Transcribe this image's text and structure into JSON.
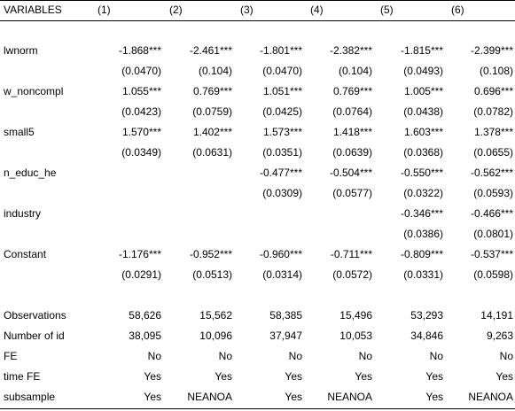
{
  "table": {
    "header": [
      "VARIABLES",
      "(1)",
      "(2)",
      "(3)",
      "(4)",
      "(5)",
      "(6)"
    ],
    "rows": [
      {
        "label": "",
        "cells": [
          "",
          "",
          "",
          "",
          "",
          ""
        ]
      },
      {
        "label": "lwnorm",
        "cells": [
          "-1.868***",
          "-2.461***",
          "-1.801***",
          "-2.382***",
          "-1.815***",
          "-2.399***"
        ]
      },
      {
        "label": "",
        "cells": [
          "(0.0470)",
          "(0.104)",
          "(0.0470)",
          "(0.104)",
          "(0.0493)",
          "(0.108)"
        ]
      },
      {
        "label": "w_noncompl",
        "cells": [
          "1.055***",
          "0.769***",
          "1.051***",
          "0.769***",
          "1.005***",
          "0.696***"
        ]
      },
      {
        "label": "",
        "cells": [
          "(0.0423)",
          "(0.0759)",
          "(0.0425)",
          "(0.0764)",
          "(0.0438)",
          "(0.0782)"
        ]
      },
      {
        "label": "small5",
        "cells": [
          "1.570***",
          "1.402***",
          "1.573***",
          "1.418***",
          "1.603***",
          "1.378***"
        ]
      },
      {
        "label": "",
        "cells": [
          "(0.0349)",
          "(0.0631)",
          "(0.0351)",
          "(0.0639)",
          "(0.0368)",
          "(0.0655)"
        ]
      },
      {
        "label": "n_educ_he",
        "cells": [
          "",
          "",
          "-0.477***",
          "-0.504***",
          "-0.550***",
          "-0.562***"
        ]
      },
      {
        "label": "",
        "cells": [
          "",
          "",
          "(0.0309)",
          "(0.0577)",
          "(0.0322)",
          "(0.0593)"
        ]
      },
      {
        "label": "industry",
        "cells": [
          "",
          "",
          "",
          "",
          "-0.346***",
          "-0.466***"
        ]
      },
      {
        "label": "",
        "cells": [
          "",
          "",
          "",
          "",
          "(0.0386)",
          "(0.0801)"
        ]
      },
      {
        "label": "Constant",
        "cells": [
          "-1.176***",
          "-0.952***",
          "-0.960***",
          "-0.711***",
          "-0.809***",
          "-0.537***"
        ]
      },
      {
        "label": "",
        "cells": [
          "(0.0291)",
          "(0.0513)",
          "(0.0314)",
          "(0.0572)",
          "(0.0331)",
          "(0.0598)"
        ]
      },
      {
        "label": "",
        "cells": [
          "",
          "",
          "",
          "",
          "",
          ""
        ]
      },
      {
        "label": "Observations",
        "cells": [
          "58,626",
          "15,562",
          "58,385",
          "15,496",
          "53,293",
          "14,191"
        ]
      },
      {
        "label": "Number of id",
        "cells": [
          "38,095",
          "10,096",
          "37,947",
          "10,053",
          "34,846",
          "9,263"
        ]
      },
      {
        "label": "FE",
        "cells": [
          "No",
          "No",
          "No",
          "No",
          "No",
          "No"
        ]
      },
      {
        "label": "time FE",
        "cells": [
          "Yes",
          "Yes",
          "Yes",
          "Yes",
          "Yes",
          "Yes"
        ]
      },
      {
        "label": "subsample",
        "cells": [
          "Yes",
          "NEANOA",
          "Yes",
          "NEANOA",
          "Yes",
          "NEANOA"
        ]
      }
    ]
  }
}
